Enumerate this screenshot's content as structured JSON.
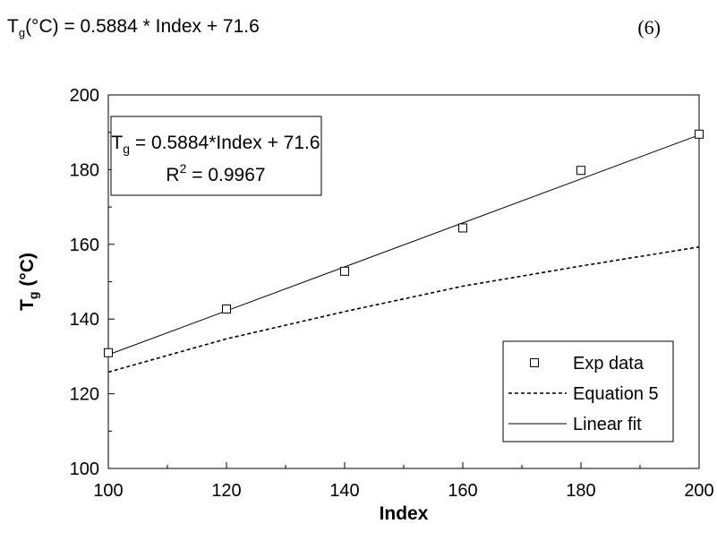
{
  "equation_line": {
    "lhs_main": "T",
    "lhs_sub": "g",
    "lhs_unit": "(°C)",
    "rhs": " = 0.5884 * Index + 71.6",
    "number": "(6)"
  },
  "chart_data": {
    "type": "scatter",
    "title": "",
    "xlabel": "Index",
    "ylabel_main": "T",
    "ylabel_sub": "g",
    "ylabel_unit": " (°C)",
    "xlim": [
      100,
      200
    ],
    "ylim": [
      100,
      200
    ],
    "x_ticks": [
      100,
      120,
      140,
      160,
      180,
      200
    ],
    "y_ticks": [
      100,
      120,
      140,
      160,
      180,
      200
    ],
    "x_tick_labels": [
      "100",
      "120",
      "140",
      "160",
      "180",
      "200"
    ],
    "y_tick_labels": [
      "100",
      "120",
      "140",
      "160",
      "180",
      "200"
    ],
    "grid": false,
    "legend_position": "bottom-right",
    "series": [
      {
        "name": "Exp data",
        "kind": "scatter",
        "marker": "open-square",
        "x": [
          100,
          120,
          140,
          160,
          180,
          200
        ],
        "y": [
          131,
          142.7,
          152.8,
          164.4,
          179.8,
          189.5
        ]
      },
      {
        "name": "Equation 5",
        "kind": "line",
        "style": "dotted",
        "x": [
          100,
          120,
          140,
          160,
          180,
          200
        ],
        "y": [
          125.8,
          134.7,
          142,
          148.8,
          154.2,
          159.3
        ]
      },
      {
        "name": "Linear fit",
        "kind": "line",
        "style": "solid",
        "x": [
          100,
          200
        ],
        "y": [
          130.44,
          189.28
        ]
      }
    ],
    "annotation": {
      "line1_main": "T",
      "line1_sub": "g",
      "line1_rest": " = 0.5884*Index + 71.6",
      "line2_main": "R",
      "line2_sup": "2",
      "line2_rest": " = 0.9967"
    }
  }
}
